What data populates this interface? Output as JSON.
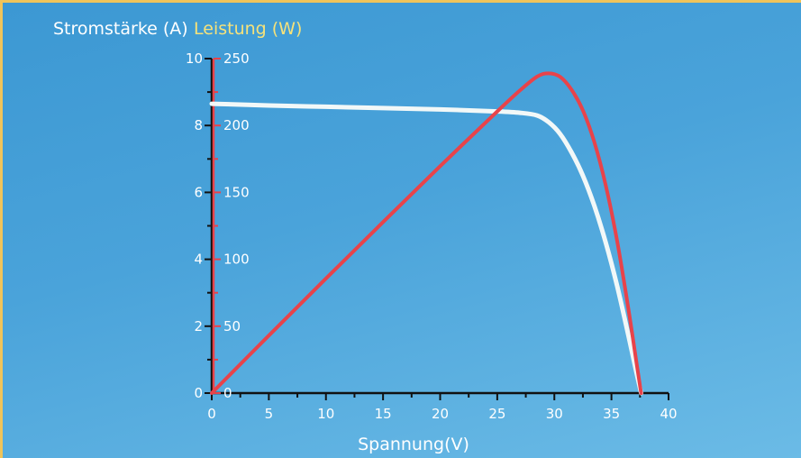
{
  "chart_data": {
    "type": "line",
    "ylabel_left": "Stromstärke (A)",
    "ylabel_right": "Leistung (W)",
    "xlabel": "Spannung(V)",
    "xlim": [
      0,
      40
    ],
    "ylim_left": [
      0,
      10
    ],
    "ylim_right": [
      0,
      250
    ],
    "x_ticks": [
      "0",
      "5",
      "10",
      "15",
      "20",
      "25",
      "30",
      "35",
      "40"
    ],
    "y_left_ticks": [
      "0",
      "2",
      "4",
      "6",
      "8",
      "10"
    ],
    "y_right_ticks": [
      "0",
      "50",
      "100",
      "150",
      "200",
      "250"
    ],
    "grid": false,
    "series": [
      {
        "axis": "left",
        "color": "#f2f8f8",
        "x": [
          0,
          5,
          10,
          15,
          20,
          25,
          27,
          28.5,
          29.5,
          30.5,
          31.5,
          32.5,
          33.5,
          34.5,
          35.5,
          36.5,
          37.2,
          37.6
        ],
        "y": [
          8.65,
          8.6,
          8.56,
          8.52,
          8.48,
          8.42,
          8.38,
          8.3,
          8.1,
          7.75,
          7.2,
          6.5,
          5.6,
          4.5,
          3.2,
          1.7,
          0.6,
          0
        ]
      },
      {
        "axis": "right",
        "color": "#e8434a",
        "x": [
          0,
          5,
          10,
          15,
          20,
          25,
          27,
          28.5,
          29.5,
          30.5,
          31.5,
          32.5,
          33.5,
          34.5,
          35.5,
          36.5,
          37.2,
          37.6
        ],
        "y": [
          0,
          43,
          85.6,
          127.8,
          169.6,
          210.5,
          226.3,
          236.6,
          239.0,
          236.4,
          226.8,
          211.3,
          187.6,
          155.3,
          113.6,
          62.1,
          22.3,
          0
        ]
      }
    ]
  }
}
